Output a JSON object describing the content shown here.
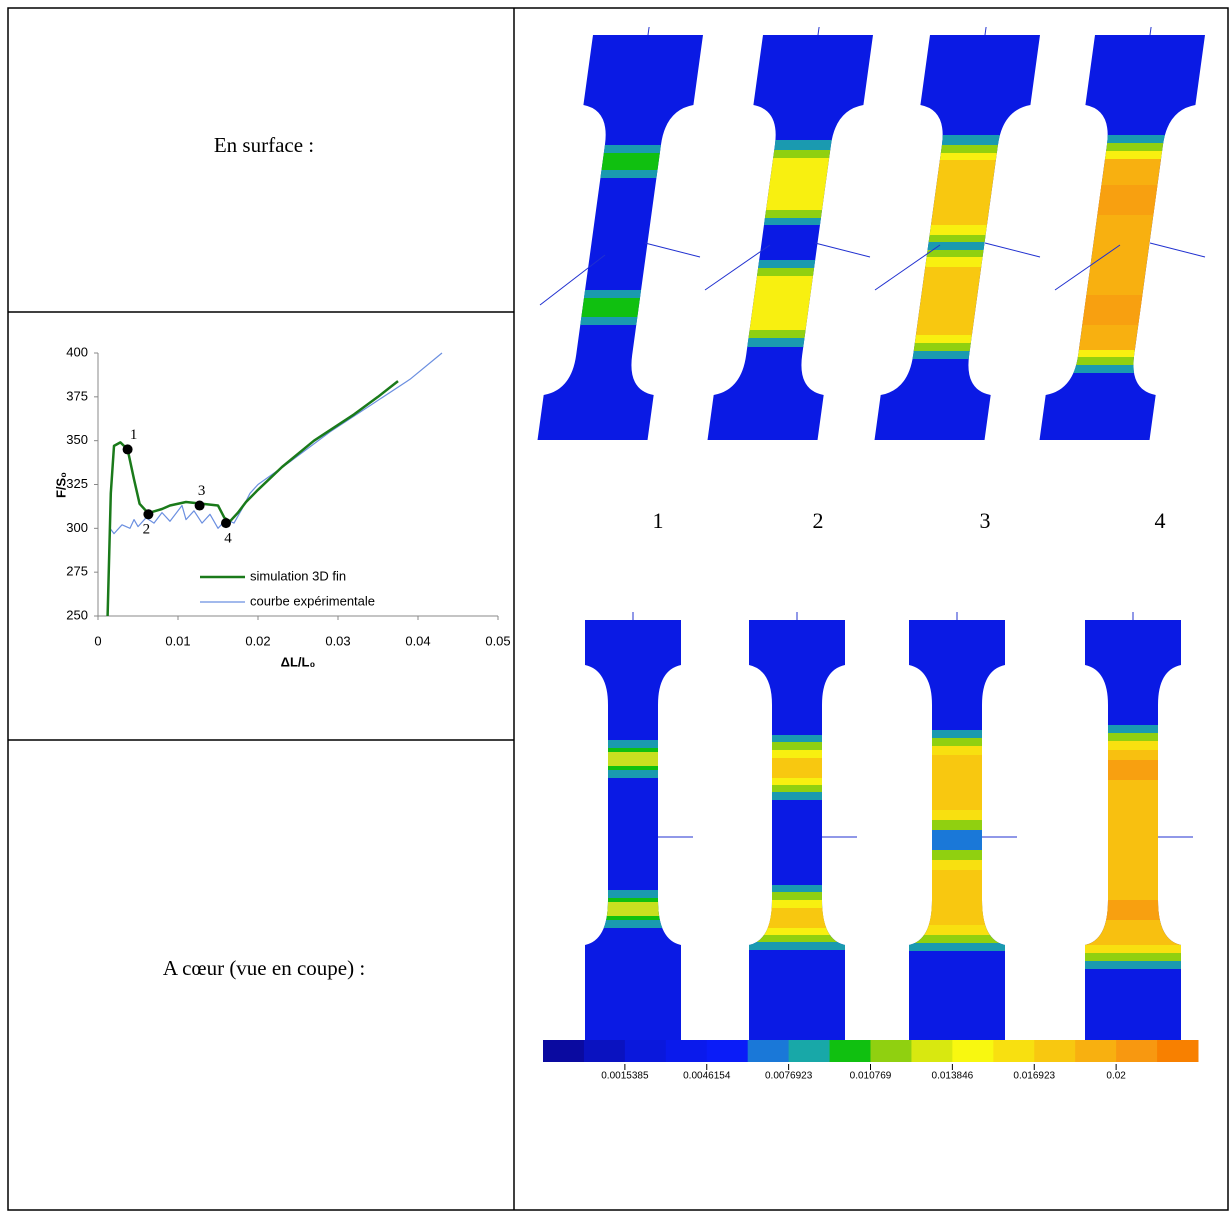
{
  "left": {
    "surface_label": "En surface :",
    "core_label": "A cœur (vue en coupe) :"
  },
  "specimen_labels": [
    "1",
    "2",
    "3",
    "4"
  ],
  "colorbar": {
    "colors": [
      "#0a0aa0",
      "#0a12c0",
      "#0a18dc",
      "#0a1aec",
      "#0a1cf8",
      "#1a78d8",
      "#18a8a8",
      "#10c010",
      "#90d010",
      "#d8e810",
      "#f8f810",
      "#f8e010",
      "#f8c810",
      "#f8b010",
      "#f89810",
      "#f88000"
    ],
    "labels": [
      "0.0015385",
      "0.0046154",
      "0.0076923",
      "0.010769",
      "0.013846",
      "0.016923",
      "0.02"
    ]
  },
  "chart_data": {
    "type": "line",
    "x_label": "ΔL/L₀",
    "y_label": "F/S₀",
    "xlim": [
      0,
      0.05
    ],
    "ylim": [
      250,
      400
    ],
    "xticks": [
      0,
      0.01,
      0.02,
      0.03,
      0.04,
      0.05
    ],
    "yticks": [
      250,
      275,
      300,
      325,
      350,
      375,
      400
    ],
    "series": [
      {
        "name": "simulation 3D fin",
        "color": "#1a7a1a",
        "x": [
          0.0012,
          0.0016,
          0.002,
          0.0028,
          0.0037,
          0.0045,
          0.0052,
          0.006,
          0.0065,
          0.008,
          0.009,
          0.011,
          0.013,
          0.015,
          0.0158,
          0.0165,
          0.0175,
          0.0185,
          0.02,
          0.023,
          0.027,
          0.032,
          0.035,
          0.0375
        ],
        "values": [
          250,
          320,
          347,
          349,
          345,
          328,
          314,
          310,
          309,
          311,
          313,
          315,
          314,
          313,
          306,
          304,
          309,
          315,
          322,
          335,
          350,
          365,
          375,
          384
        ]
      },
      {
        "name": "courbe expérimentale",
        "color": "#6b8fe0",
        "x": [
          0.0012,
          0.0015,
          0.002,
          0.003,
          0.004,
          0.0045,
          0.005,
          0.006,
          0.007,
          0.008,
          0.009,
          0.0105,
          0.011,
          0.012,
          0.013,
          0.014,
          0.015,
          0.016,
          0.017,
          0.018,
          0.019,
          0.02,
          0.024,
          0.029,
          0.034,
          0.039,
          0.043
        ],
        "values": [
          250,
          300,
          297,
          302,
          300,
          305,
          301,
          306,
          303,
          309,
          304,
          313,
          305,
          310,
          303,
          308,
          300,
          305,
          303,
          311,
          320,
          325,
          338,
          355,
          370,
          385,
          400
        ]
      }
    ],
    "points": {
      "x": [
        0.0037,
        0.0063,
        0.0127,
        0.016
      ],
      "values": [
        345,
        308,
        313,
        303
      ],
      "labels": [
        "1",
        "2",
        "3",
        "4"
      ]
    }
  }
}
